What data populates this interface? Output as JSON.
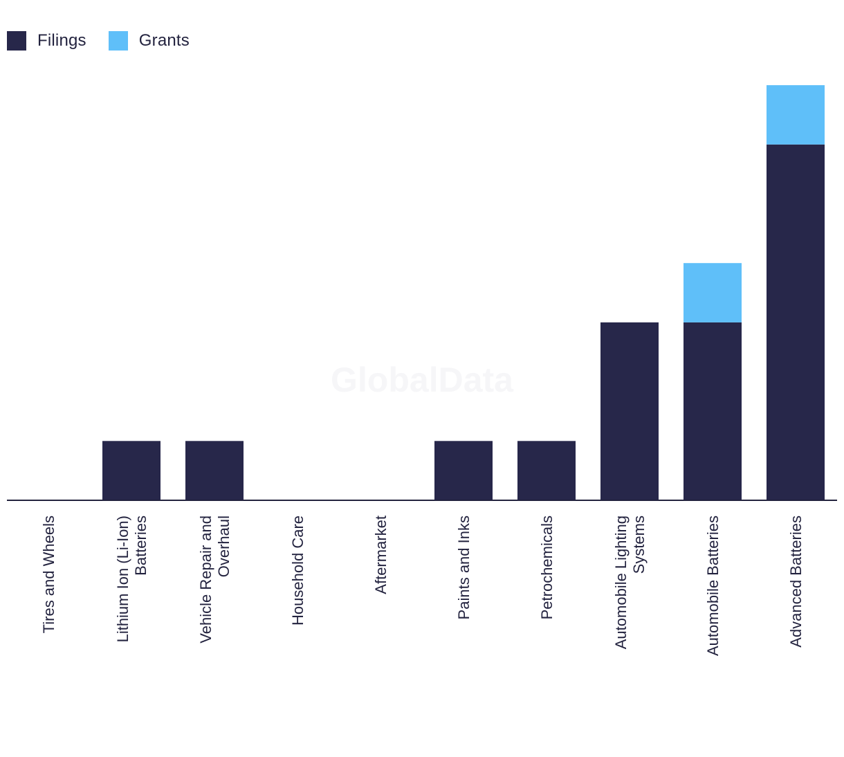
{
  "legend": {
    "filings_label": "Filings",
    "grants_label": "Grants"
  },
  "watermark": "GlobalData",
  "colors": {
    "filings": "#27274a",
    "grants": "#5fbff9",
    "axis": "#23233f",
    "label": "#23233f",
    "watermark": "#f6f6f8"
  },
  "chart_data": {
    "type": "bar",
    "stacked": true,
    "categories": [
      "Tires and Wheels",
      "Lithium Ion (Li-Ion) Batteries",
      "Vehicle Repair and Overhaul",
      "Household Care",
      "Aftermarket",
      "Paints and Inks",
      "Petrochemicals",
      "Automobile Lighting Systems",
      "Automobile Batteries",
      "Advanced Batteries"
    ],
    "category_label_lines": [
      [
        "Tires and Wheels"
      ],
      [
        "Lithium Ion (Li-Ion)",
        "Batteries"
      ],
      [
        "Vehicle Repair and",
        "Overhaul"
      ],
      [
        "Household Care"
      ],
      [
        "Aftermarket"
      ],
      [
        "Paints and Inks"
      ],
      [
        "Petrochemicals"
      ],
      [
        "Automobile Lighting",
        "Systems"
      ],
      [
        "Automobile Batteries"
      ],
      [
        "Advanced Batteries"
      ]
    ],
    "series": [
      {
        "name": "Filings",
        "values": [
          0,
          1,
          1,
          0,
          0,
          1,
          1,
          3,
          3,
          6
        ]
      },
      {
        "name": "Grants",
        "values": [
          0,
          0,
          0,
          0,
          0,
          0,
          0,
          0,
          1,
          1
        ]
      }
    ],
    "ylim": [
      0,
      7
    ],
    "legend_position": "top-left",
    "grid": false
  }
}
